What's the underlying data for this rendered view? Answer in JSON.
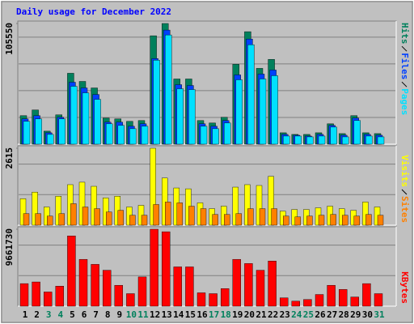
{
  "chart_data": [
    {
      "type": "bar",
      "title": "Daily usage for December 2022",
      "ylim": [
        0,
        105550
      ],
      "yticks": [
        105550
      ],
      "series": [
        {
          "name": "Hits",
          "color": "#00805c",
          "values": [
            24955,
            29946,
            11408,
            25668,
            62031,
            54901,
            49197,
            22816,
            22103,
            19964,
            20677,
            94829,
            105550,
            57040,
            57040,
            20677,
            18538,
            23529,
            69874,
            98394,
            66309,
            74152,
            9982,
            8556,
            8556,
            9982,
            17825,
            9269,
            24955,
            9982,
            9269
          ]
        },
        {
          "name": "Files",
          "color": "#0040ff",
          "values": [
            22103,
            24955,
            9982,
            23529,
            54188,
            49197,
            43493,
            19251,
            19251,
            15686,
            17825,
            74865,
            99820,
            52049,
            51336,
            17825,
            15686,
            20677,
            60605,
            91977,
            61318,
            64883,
            8556,
            7843,
            7130,
            8556,
            16399,
            7843,
            22816,
            8556,
            7843
          ]
        },
        {
          "name": "Pages",
          "color": "#00e0ff",
          "values": [
            19964,
            22103,
            8556,
            22103,
            50623,
            44919,
            39215,
            17825,
            16399,
            13547,
            15686,
            73439,
            95542,
            48484,
            47771,
            15686,
            13547,
            18538,
            56327,
            86986,
            57040,
            59892,
            7130,
            7130,
            6417,
            7130,
            14973,
            6417,
            20677,
            7130,
            6417
          ]
        }
      ]
    },
    {
      "type": "bar",
      "ylim": [
        0,
        2615
      ],
      "yticks": [
        2615
      ],
      "series": [
        {
          "name": "Visits",
          "color": "#ffff00",
          "values": [
            899,
            1124,
            618,
            984,
            1377,
            1461,
            1321,
            927,
            984,
            618,
            674,
            2615,
            1602,
            1265,
            1236,
            759,
            562,
            646,
            1293,
            1377,
            1349,
            1658,
            478,
            534,
            534,
            590,
            646,
            562,
            506,
            787,
            618
          ]
        },
        {
          "name": "Sites",
          "color": "#ff8000",
          "values": [
            393,
            393,
            309,
            393,
            731,
            618,
            562,
            450,
            506,
            337,
            337,
            703,
            787,
            759,
            646,
            562,
            365,
            365,
            393,
            562,
            562,
            562,
            309,
            281,
            309,
            337,
            365,
            337,
            309,
            365,
            337
          ]
        }
      ]
    },
    {
      "type": "bar",
      "ylim": [
        0,
        9661730
      ],
      "yticks": [
        9661730
      ],
      "categories": [
        "1",
        "2",
        "3",
        "4",
        "5",
        "6",
        "7",
        "8",
        "9",
        "10",
        "11",
        "12",
        "13",
        "14",
        "15",
        "16",
        "17",
        "18",
        "19",
        "20",
        "21",
        "22",
        "23",
        "24",
        "25",
        "26",
        "27",
        "28",
        "29",
        "30",
        "31"
      ],
      "category_colors": [
        "#000000",
        "#000000",
        "#00805c",
        "#00805c",
        "#000000",
        "#000000",
        "#000000",
        "#000000",
        "#000000",
        "#00805c",
        "#00805c",
        "#000000",
        "#000000",
        "#000000",
        "#000000",
        "#000000",
        "#00805c",
        "#00805c",
        "#000000",
        "#000000",
        "#000000",
        "#000000",
        "#000000",
        "#00805c",
        "#00805c",
        "#000000",
        "#000000",
        "#000000",
        "#000000",
        "#000000",
        "#00805c"
      ],
      "series": [
        {
          "name": "KBytes",
          "color": "#ff0000",
          "values": [
            2835513,
            3045551,
            1785323,
            2520456,
            8821596,
            5881064,
            5250950,
            4515817,
            2625475,
            1575285,
            3675665,
            9661730,
            9346691,
            4935893,
            4935893,
            1680304,
            1575285,
            2205399,
            5881064,
            5355969,
            4515817,
            5671026,
            1050190,
            630114,
            840152,
            1470266,
            2625475,
            2100380,
            1155209,
            2835513,
            1575285
          ]
        }
      ]
    }
  ]
}
